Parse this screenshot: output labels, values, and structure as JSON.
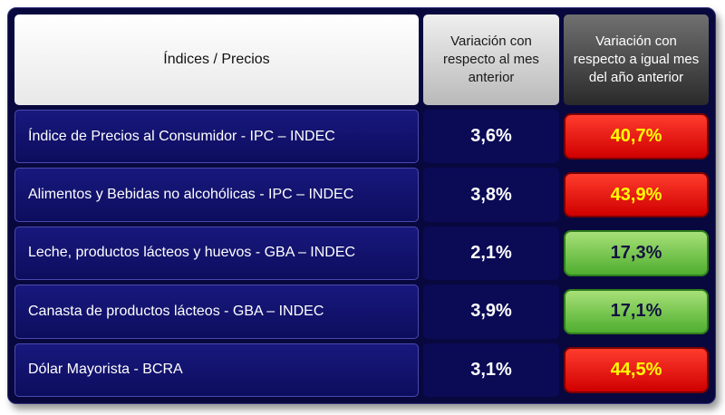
{
  "table": {
    "header": {
      "col1": "Índices / Precios",
      "col2": "Variación con respecto al mes anterior",
      "col3": "Variación con respecto a igual mes del año anterior"
    },
    "rows": [
      {
        "label": "Índice de Precios al Consumidor - IPC – INDEC",
        "month": "3,6%",
        "year": "40,7%",
        "status": "red"
      },
      {
        "label": "Alimentos y Bebidas no alcohólicas - IPC – INDEC",
        "month": "3,8%",
        "year": "43,9%",
        "status": "red"
      },
      {
        "label": "Leche, productos lácteos y huevos - GBA – INDEC",
        "month": "2,1%",
        "year": "17,3%",
        "status": "green"
      },
      {
        "label": "Canasta de productos lácteos - GBA – INDEC",
        "month": "3,9%",
        "year": "17,1%",
        "status": "green"
      },
      {
        "label": "Dólar Mayorista - BCRA",
        "month": "3,1%",
        "year": "44,5%",
        "status": "red"
      }
    ],
    "colors": {
      "navy_panel": "#08083e",
      "red_badge": "#cf0000",
      "red_text": "#ffff00",
      "green_badge": "#4fae2f",
      "green_text": "#13133f"
    }
  },
  "chart_data": {
    "type": "table",
    "title": "Índices / Precios",
    "columns": [
      "Índices / Precios",
      "Variación con respecto al mes anterior",
      "Variación con respecto a igual mes del año anterior"
    ],
    "rows": [
      [
        "Índice de Precios al Consumidor - IPC – INDEC",
        "3,6%",
        "40,7%"
      ],
      [
        "Alimentos y Bebidas no alcohólicas - IPC – INDEC",
        "3,8%",
        "43,9%"
      ],
      [
        "Leche, productos lácteos y huevos - GBA – INDEC",
        "2,1%",
        "17,3%"
      ],
      [
        "Canasta de productos lácteos - GBA – INDEC",
        "3,9%",
        "17,1%"
      ],
      [
        "Dólar Mayorista - BCRA",
        "3,1%",
        "44,5%"
      ]
    ],
    "cell_highlights": {
      "year_column_red_rows": [
        0,
        1,
        4
      ],
      "year_column_green_rows": [
        2,
        3
      ]
    }
  }
}
